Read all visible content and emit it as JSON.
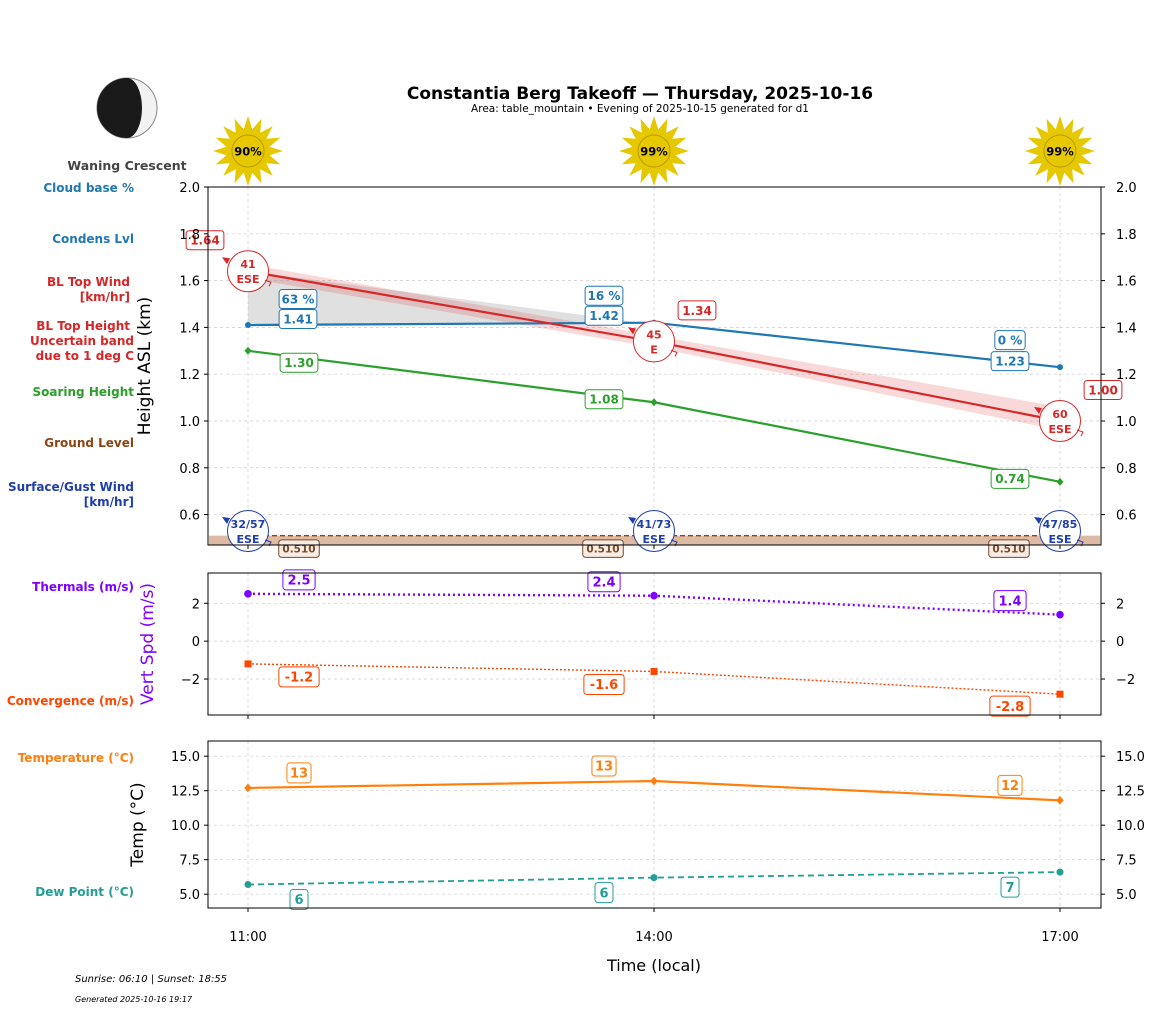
{
  "title": "Constantia Berg Takeoff — Thursday, 2025-10-16",
  "subtitle": "Area: table_mountain • Evening of 2025-10-15 generated for d1",
  "moon": {
    "phase": "Waning Crescent"
  },
  "sun_icons": [
    {
      "time": "11:00",
      "value": "90%"
    },
    {
      "time": "14:00",
      "value": "99%"
    },
    {
      "time": "17:00",
      "value": "99%"
    }
  ],
  "left_labels": {
    "cloud_base": "Cloud base %",
    "condens": "Condens Lvl",
    "bl_wind_1": "BL Top Wind",
    "bl_wind_2": "[km/hr]",
    "bl_height_1": "BL Top Height",
    "bl_height_2": "Uncertain band",
    "bl_height_3": "due to 1 deg C",
    "soaring": "Soaring Height",
    "ground": "Ground Level",
    "surface_1": "Surface/Gust Wind",
    "surface_2": "[km/hr]",
    "thermals": "Thermals (m/s)",
    "convergence": "Convergence (m/s)",
    "temperature": "Temperature (°C)",
    "dewpoint": "Dew Point (°C)"
  },
  "colors": {
    "cloud": "#1f77b4",
    "bl_top": "#d62728",
    "soaring": "#2ca02c",
    "ground": "#8b4513",
    "surface_wind": "#1f3fa8",
    "thermals": "#7f00ff",
    "convergence": "#ff4500",
    "temperature": "#ff7f0e",
    "dewpoint": "#229e96",
    "sun": "#e6c800",
    "grid": "#cccccc"
  },
  "chart_data": [
    {
      "type": "line",
      "ylabel": "Height ASL (km)",
      "ylim": [
        0.47,
        2.0
      ],
      "yticks": [
        "0.6",
        "0.8",
        "1.0",
        "1.2",
        "1.4",
        "1.6",
        "1.8",
        "2.0"
      ],
      "x": [
        "11:00",
        "14:00",
        "17:00"
      ],
      "grid": true,
      "series": [
        {
          "name": "Condens Lvl",
          "values": [
            1.41,
            1.42,
            1.23
          ],
          "labels": [
            "1.41",
            "1.42",
            "1.23"
          ]
        },
        {
          "name": "Cloud base %",
          "values": [
            63,
            16,
            0
          ],
          "labels": [
            "63 %",
            "16 %",
            "0 %"
          ]
        },
        {
          "name": "BL Top Height",
          "values": [
            1.64,
            1.34,
            1.0
          ],
          "labels": [
            "1.64",
            "1.34",
            "1.00"
          ]
        },
        {
          "name": "Soaring Height",
          "values": [
            1.3,
            1.08,
            0.74
          ],
          "labels": [
            "1.30",
            "1.08",
            "0.74"
          ]
        },
        {
          "name": "Ground Level",
          "values": [
            0.51,
            0.51,
            0.51
          ],
          "labels": [
            "0.510",
            "0.510",
            "0.510"
          ]
        }
      ],
      "bl_top_wind": [
        {
          "speed": "41",
          "dir": "ESE"
        },
        {
          "speed": "45",
          "dir": "E"
        },
        {
          "speed": "60",
          "dir": "ESE"
        }
      ],
      "surface_wind": [
        {
          "speed": "32/57",
          "dir": "ESE"
        },
        {
          "speed": "41/73",
          "dir": "ESE"
        },
        {
          "speed": "47/85",
          "dir": "ESE"
        }
      ]
    },
    {
      "type": "line",
      "ylabel": "Vert Spd (m/s)",
      "ylim": [
        -3.9,
        3.6
      ],
      "yticks": [
        "-2",
        "0",
        "2"
      ],
      "x": [
        "11:00",
        "14:00",
        "17:00"
      ],
      "grid": true,
      "series": [
        {
          "name": "Thermals (m/s)",
          "values": [
            2.5,
            2.4,
            1.4
          ],
          "labels": [
            "2.5",
            "2.4",
            "1.4"
          ]
        },
        {
          "name": "Convergence (m/s)",
          "values": [
            -1.2,
            -1.6,
            -2.8
          ],
          "labels": [
            "-1.2",
            "-1.6",
            "-2.8"
          ]
        }
      ]
    },
    {
      "type": "line",
      "ylabel": "Temp (°C)",
      "xlabel": "Time (local)",
      "ylim": [
        4.0,
        16.1
      ],
      "yticks": [
        "5.0",
        "7.5",
        "10.0",
        "12.5",
        "15.0"
      ],
      "x": [
        "11:00",
        "14:00",
        "17:00"
      ],
      "grid": true,
      "series": [
        {
          "name": "Temperature (°C)",
          "values": [
            12.7,
            13.2,
            11.8
          ],
          "labels": [
            "13",
            "13",
            "12"
          ]
        },
        {
          "name": "Dew Point (°C)",
          "values": [
            5.7,
            6.2,
            6.6
          ],
          "labels": [
            "6",
            "6",
            "7"
          ]
        }
      ]
    }
  ],
  "footer": {
    "sun": "Sunrise: 06:10 | Sunset: 18:55",
    "generated": "Generated 2025-10-16 19:17"
  }
}
